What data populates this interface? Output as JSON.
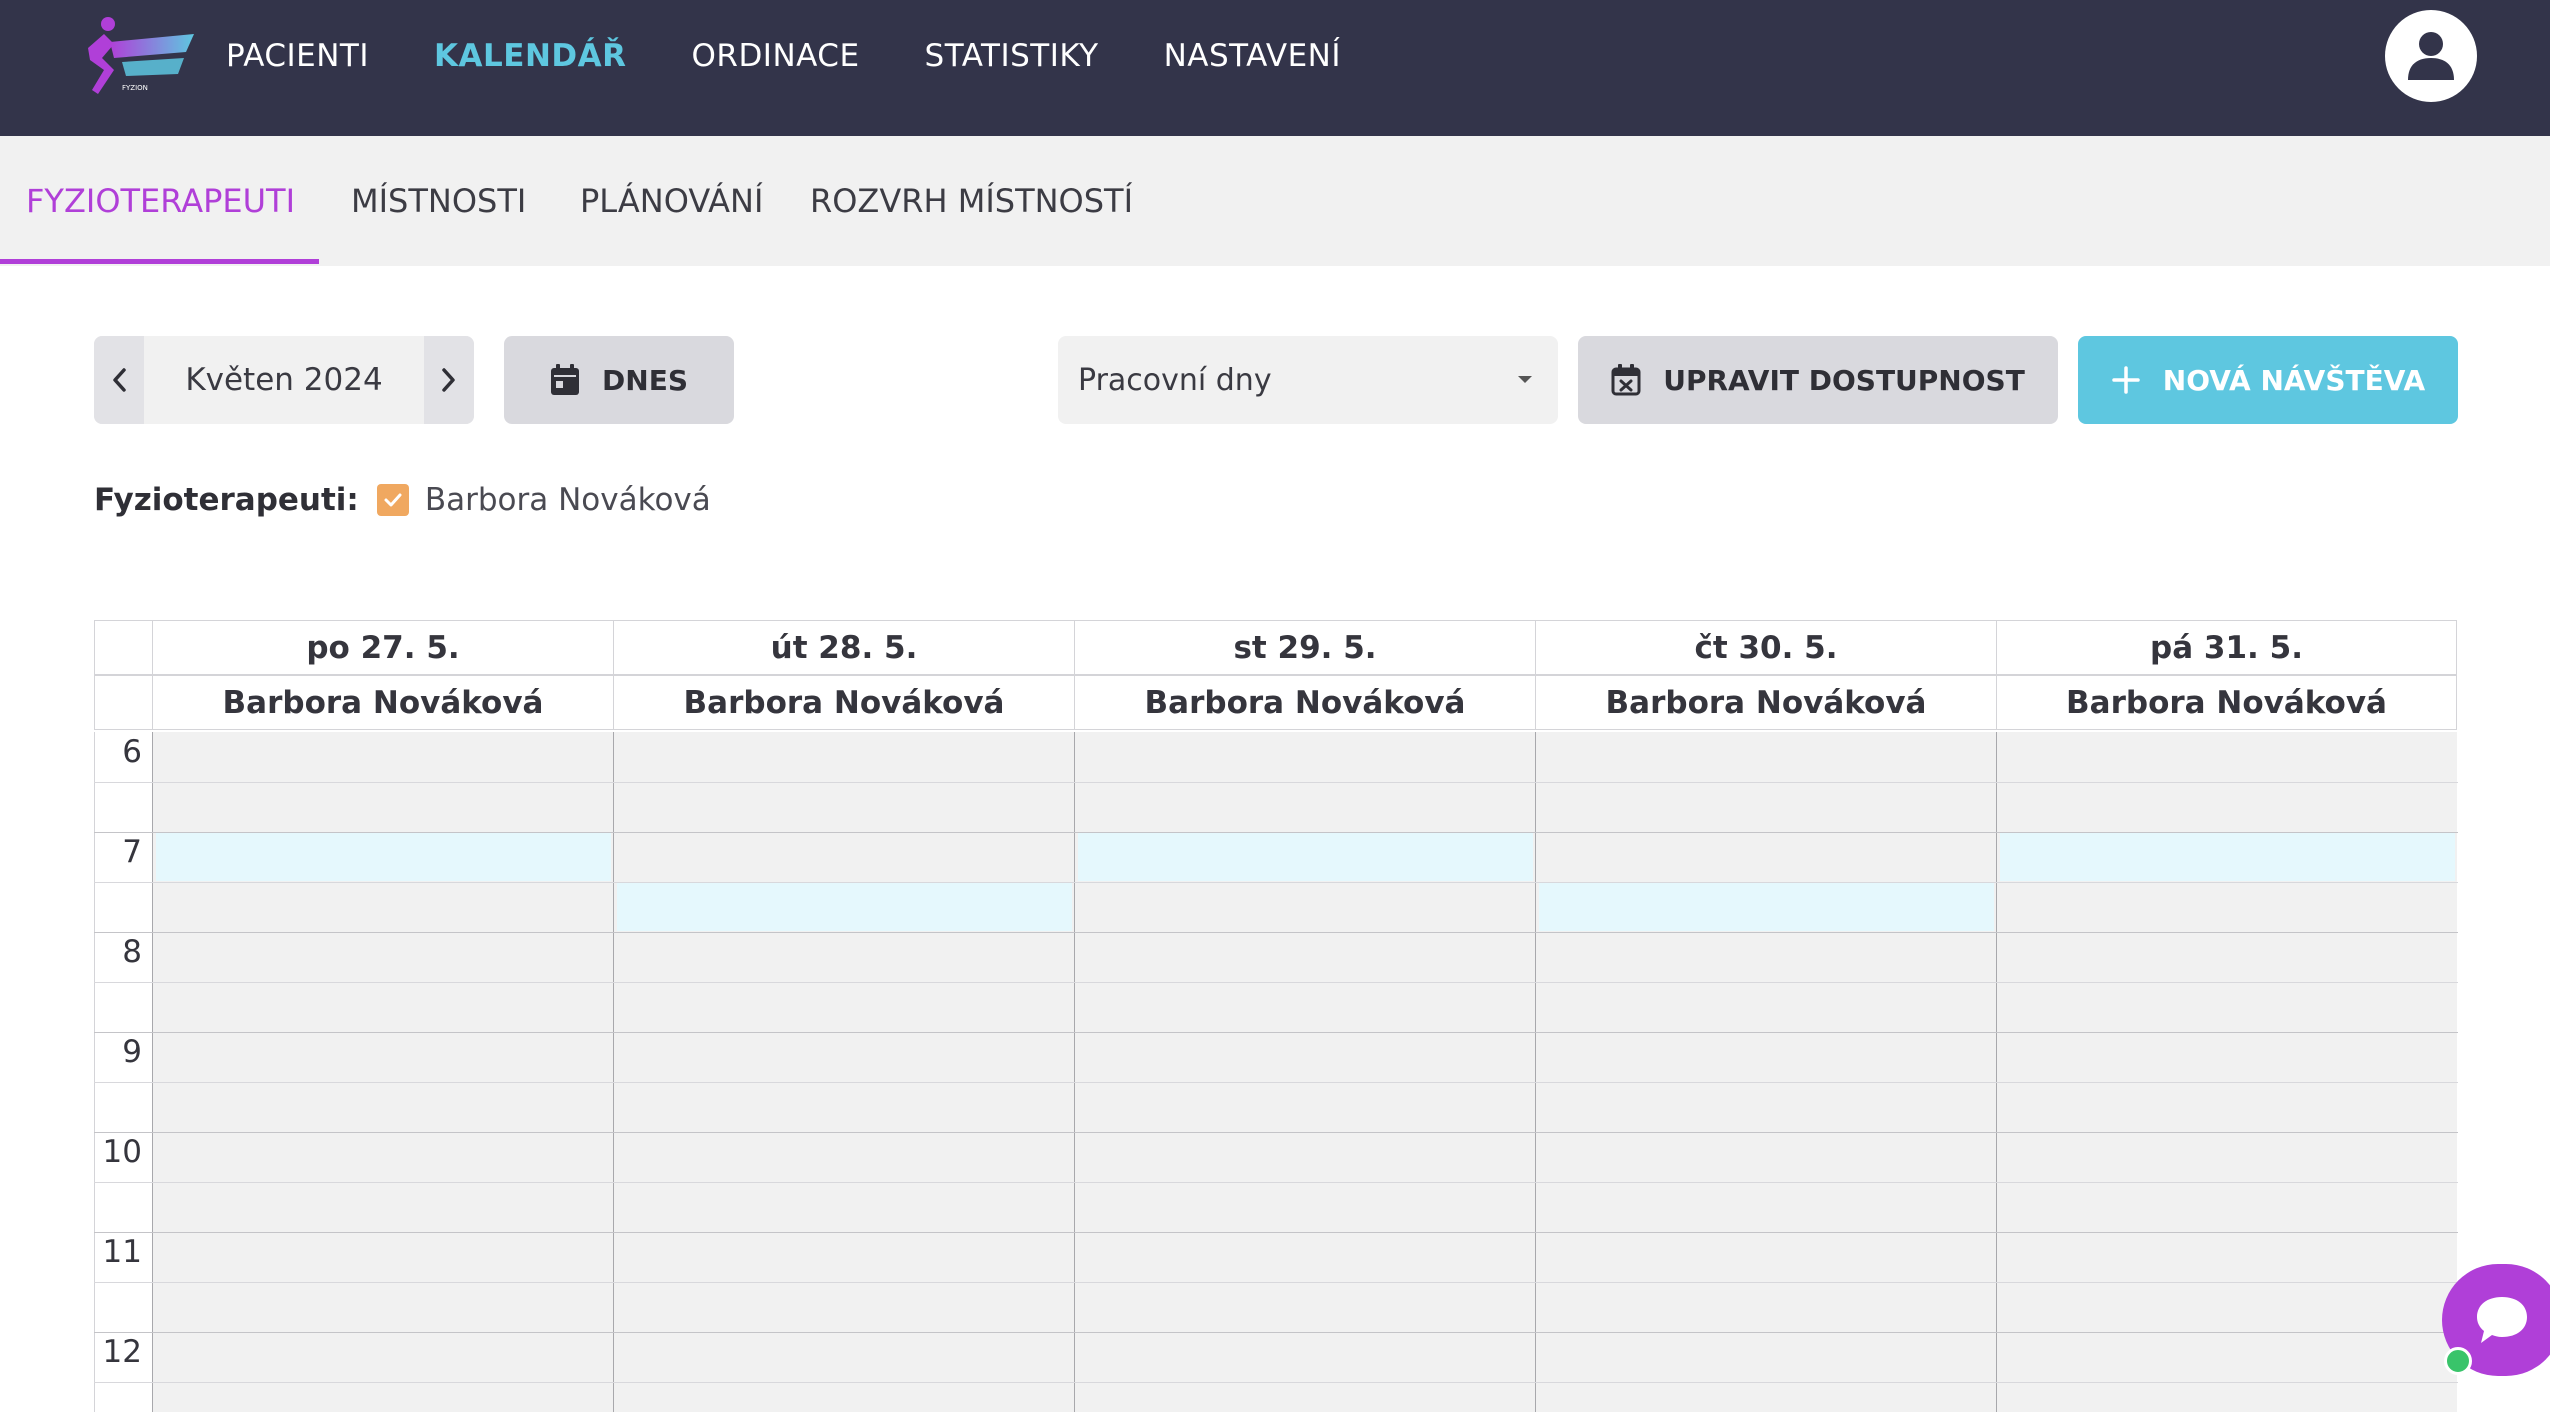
{
  "brand": {
    "logo_text": "FYZION",
    "accent": "#b03fd8",
    "primary": "#5ec7e0"
  },
  "nav": {
    "items": [
      {
        "label": "PACIENTI"
      },
      {
        "label": "KALENDÁŘ",
        "active": true
      },
      {
        "label": "ORDINACE"
      },
      {
        "label": "STATISTIKY"
      },
      {
        "label": "NASTAVENÍ"
      }
    ],
    "user_icon": "user-icon"
  },
  "subtabs": {
    "items": [
      {
        "label": "FYZIOTERAPEUTI",
        "active": true
      },
      {
        "label": "MÍSTNOSTI"
      },
      {
        "label": "PLÁNOVÁNÍ"
      },
      {
        "label": "ROZVRH MÍSTNOSTÍ"
      }
    ]
  },
  "toolbar": {
    "month_label": "Květen 2024",
    "today_label": "DNES",
    "view_select_value": "Pracovní dny",
    "availability_label": "UPRAVIT DOSTUPNOST",
    "new_visit_label": "NOVÁ NÁVŠTĚVA"
  },
  "filter": {
    "label": "Fyzioterapeuti:",
    "therapist": "Barbora Nováková",
    "checked": true
  },
  "calendar": {
    "days": [
      {
        "date": "po 27. 5.",
        "therapist": "Barbora Nováková"
      },
      {
        "date": "út 28. 5.",
        "therapist": "Barbora Nováková"
      },
      {
        "date": "st 29. 5.",
        "therapist": "Barbora Nováková"
      },
      {
        "date": "čt 30. 5.",
        "therapist": "Barbora Nováková"
      },
      {
        "date": "pá 31. 5.",
        "therapist": "Barbora Nováková"
      }
    ],
    "hours": [
      "6",
      "7",
      "8",
      "9",
      "10",
      "11",
      "12"
    ],
    "available_slots": [
      {
        "day": 0,
        "start": "7:00",
        "end": "7:30"
      },
      {
        "day": 1,
        "start": "7:30",
        "end": "8:00"
      },
      {
        "day": 2,
        "start": "7:00",
        "end": "7:30"
      },
      {
        "day": 3,
        "start": "7:30",
        "end": "8:00"
      },
      {
        "day": 4,
        "start": "7:00",
        "end": "7:30"
      }
    ]
  },
  "chat": {
    "icon": "chat-bubble-icon",
    "status": "online"
  }
}
